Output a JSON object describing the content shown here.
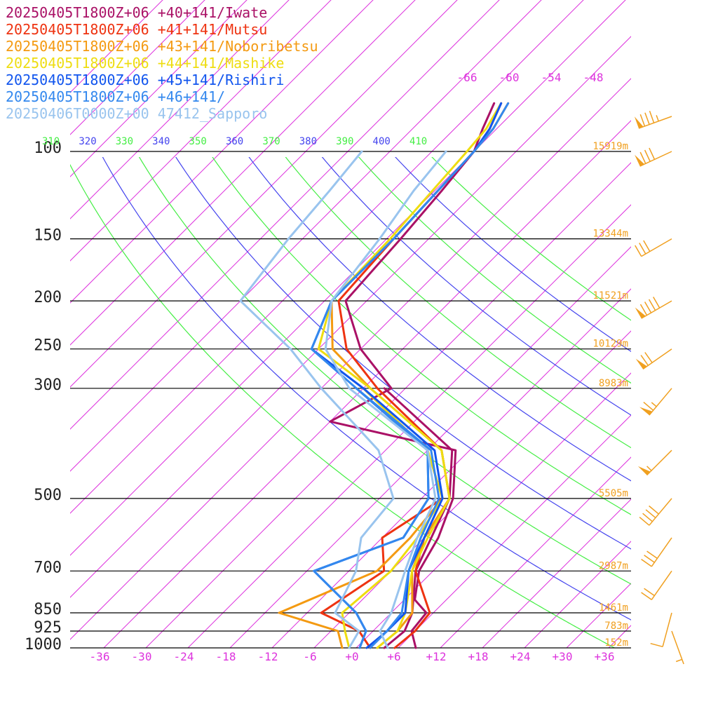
{
  "legend": [
    {
      "label": "20250405T1800Z+06 +40+141/Iwate",
      "color": "#aa1166"
    },
    {
      "label": "20250405T1800Z+06 +41+141/Mutsu",
      "color": "#ee3311"
    },
    {
      "label": "20250405T1800Z+06 +43+141/Noboribetsu",
      "color": "#f49a11"
    },
    {
      "label": "20250405T1800Z+06 +44+141/Mashike",
      "color": "#eedd11"
    },
    {
      "label": "20250405T1800Z+06 +45+141/Rishiri",
      "color": "#1155ee"
    },
    {
      "label": "20250405T1800Z+06 +46+141/",
      "color": "#3388ee"
    },
    {
      "label": "20250406T0000Z+00 47412_Sapporo",
      "color": "#99c4ee"
    }
  ],
  "chart_data": {
    "type": "line",
    "pressure_levels": [
      1000,
      925,
      850,
      700,
      500,
      300,
      250,
      200,
      150,
      100
    ],
    "pressure_tick_labels": [
      "1000",
      "925",
      "850",
      "700",
      "500",
      "300",
      "250",
      "200",
      "150",
      "100"
    ],
    "height_labels": [
      "152m",
      "783m",
      "1461m",
      "2987m",
      "5505m",
      "8983m",
      "10129m",
      "11521m",
      "13344m",
      "15919m"
    ],
    "temperature_ticks": [
      -36,
      -30,
      -24,
      -18,
      -12,
      -6,
      0,
      6,
      12,
      18,
      24,
      30,
      36
    ],
    "temperature_tick_labels": [
      "-36",
      "-30",
      "-24",
      "-18",
      "-12",
      "-6",
      "+0",
      "+6",
      "+12",
      "+18",
      "+24",
      "+30",
      "+36"
    ],
    "upper_isotherm_labels": [
      "-66",
      "-60",
      "-54",
      "-48"
    ],
    "theta_labels": [
      {
        "text": "310",
        "color": "#44ee44"
      },
      {
        "text": "320",
        "color": "#4444ee"
      },
      {
        "text": "330",
        "color": "#44ee44"
      },
      {
        "text": "340",
        "color": "#4444ee"
      },
      {
        "text": "350",
        "color": "#44ee44"
      },
      {
        "text": "360",
        "color": "#4444ee"
      },
      {
        "text": "370",
        "color": "#44ee44"
      },
      {
        "text": "380",
        "color": "#4444ee"
      },
      {
        "text": "390",
        "color": "#44ee44"
      },
      {
        "text": "400",
        "color": "#4444ee"
      },
      {
        "text": "410",
        "color": "#44ee44"
      }
    ],
    "series": [
      {
        "name": "20250405T1800Z+06 +40+141/Iwate",
        "color": "#aa1166",
        "temperature": [
          [
            1000,
            8.5
          ],
          [
            925,
            5.5
          ],
          [
            850,
            5.0
          ],
          [
            800,
            1.5
          ],
          [
            700,
            -2.0
          ],
          [
            600,
            -4.0
          ],
          [
            500,
            -7.5
          ],
          [
            400,
            -14.0
          ],
          [
            350,
            -36.0
          ],
          [
            300,
            -32.0
          ],
          [
            250,
            -42.0
          ],
          [
            200,
            -51.0
          ],
          [
            150,
            -52.0
          ],
          [
            120,
            -53.0
          ],
          [
            100,
            -54.0
          ],
          [
            90,
            -56.0
          ],
          [
            80,
            -58.0
          ]
        ],
        "dewpoint": [
          [
            1000,
            4.0
          ],
          [
            925,
            4.5
          ],
          [
            850,
            3.0
          ],
          [
            700,
            -2.5
          ],
          [
            600,
            -5.0
          ],
          [
            500,
            -8.0
          ],
          [
            400,
            -14.5
          ],
          [
            300,
            -33.0
          ]
        ]
      },
      {
        "name": "20250405T1800Z+06 +41+141/Mutsu",
        "color": "#ee3311",
        "temperature": [
          [
            1000,
            5.5
          ],
          [
            925,
            6.0
          ],
          [
            850,
            5.5
          ],
          [
            700,
            -2.5
          ],
          [
            600,
            -6.0
          ],
          [
            500,
            -8.0
          ],
          [
            400,
            -16.0
          ],
          [
            300,
            -34.0
          ],
          [
            250,
            -44.0
          ],
          [
            200,
            -52.0
          ],
          [
            150,
            -53.0
          ],
          [
            100,
            -54.0
          ],
          [
            90,
            -55.0
          ],
          [
            80,
            -57.0
          ]
        ],
        "dewpoint": [
          [
            1000,
            2.0
          ],
          [
            925,
            -2.0
          ],
          [
            850,
            -10.0
          ],
          [
            700,
            -7.0
          ],
          [
            600,
            -12.0
          ],
          [
            500,
            -9.0
          ],
          [
            400,
            -18.0
          ],
          [
            300,
            -36.0
          ]
        ]
      },
      {
        "name": "20250405T1800Z+06 +43+141/Noboribetsu",
        "color": "#f49a11",
        "temperature": [
          [
            1000,
            3.0
          ],
          [
            925,
            3.5
          ],
          [
            850,
            3.0
          ],
          [
            700,
            -3.0
          ],
          [
            600,
            -6.0
          ],
          [
            500,
            -8.0
          ],
          [
            400,
            -16.0
          ],
          [
            300,
            -35.0
          ],
          [
            250,
            -46.0
          ],
          [
            200,
            -53.0
          ],
          [
            150,
            -53.0
          ],
          [
            100,
            -54.0
          ],
          [
            90,
            -54.5
          ],
          [
            80,
            -56.0
          ]
        ],
        "dewpoint": [
          [
            1000,
            -2.0
          ],
          [
            925,
            -5.0
          ],
          [
            850,
            -16.0
          ],
          [
            700,
            -8.0
          ],
          [
            600,
            -8.0
          ],
          [
            500,
            -9.0
          ],
          [
            400,
            -18.0
          ],
          [
            300,
            -36.0
          ]
        ]
      },
      {
        "name": "20250405T1800Z+06 +44+141/Mashike",
        "color": "#eedd11",
        "temperature": [
          [
            1000,
            3.0
          ],
          [
            925,
            3.5
          ],
          [
            850,
            2.0
          ],
          [
            700,
            -3.0
          ],
          [
            600,
            -5.5
          ],
          [
            500,
            -8.0
          ],
          [
            400,
            -16.0
          ],
          [
            300,
            -35.0
          ],
          [
            250,
            -48.0
          ],
          [
            200,
            -53.0
          ],
          [
            150,
            -53.5
          ],
          [
            100,
            -55.0
          ],
          [
            90,
            -55.5
          ],
          [
            80,
            -57.0
          ]
        ],
        "dewpoint": [
          [
            1000,
            -1.0
          ],
          [
            925,
            -4.0
          ],
          [
            850,
            -7.0
          ],
          [
            700,
            -6.0
          ],
          [
            600,
            -7.0
          ],
          [
            500,
            -9.0
          ],
          [
            400,
            -18.0
          ],
          [
            300,
            -36.0
          ]
        ]
      },
      {
        "name": "20250405T1800Z+06 +45+141/Rishiri",
        "color": "#1155ee",
        "temperature": [
          [
            1000,
            1.5
          ],
          [
            925,
            2.0
          ],
          [
            850,
            2.0
          ],
          [
            700,
            -3.5
          ],
          [
            600,
            -6.0
          ],
          [
            500,
            -9.0
          ],
          [
            400,
            -17.0
          ],
          [
            300,
            -36.0
          ],
          [
            250,
            -49.0
          ],
          [
            200,
            -53.0
          ],
          [
            150,
            -53.0
          ],
          [
            100,
            -54.0
          ],
          [
            90,
            -55.0
          ],
          [
            80,
            -57.0
          ]
        ],
        "dewpoint": [
          [
            1000,
            0.5
          ],
          [
            925,
            -1.0
          ],
          [
            850,
            -5.0
          ],
          [
            700,
            -17.0
          ],
          [
            600,
            -9.0
          ],
          [
            500,
            -11.0
          ],
          [
            400,
            -18.0
          ],
          [
            300,
            -37.0
          ]
        ]
      },
      {
        "name": "20250405T1800Z+06 +46+141/",
        "color": "#3388ee",
        "temperature": [
          [
            1000,
            2.0
          ],
          [
            925,
            2.0
          ],
          [
            850,
            1.5
          ],
          [
            700,
            -3.5
          ],
          [
            600,
            -6.5
          ],
          [
            500,
            -9.5
          ],
          [
            400,
            -17.5
          ],
          [
            300,
            -37.0
          ],
          [
            250,
            -49.0
          ],
          [
            200,
            -53.0
          ],
          [
            150,
            -53.0
          ],
          [
            100,
            -54.0
          ],
          [
            90,
            -54.5
          ],
          [
            80,
            -56.0
          ]
        ],
        "dewpoint": [
          [
            1000,
            0.5
          ],
          [
            925,
            -1.0
          ],
          [
            850,
            -5.0
          ],
          [
            700,
            -17.0
          ],
          [
            600,
            -9.0
          ],
          [
            500,
            -11.0
          ],
          [
            400,
            -18.0
          ],
          [
            300,
            -37.0
          ]
        ]
      },
      {
        "name": "20250406T0000Z+00 47412_Sapporo",
        "color": "#99c4ee",
        "temperature": [
          [
            1000,
            4.5
          ],
          [
            925,
            1.0
          ],
          [
            850,
            0.0
          ],
          [
            700,
            -4.0
          ],
          [
            600,
            -7.0
          ],
          [
            500,
            -10.0
          ],
          [
            400,
            -18.0
          ],
          [
            300,
            -38.0
          ],
          [
            250,
            -47.0
          ],
          [
            200,
            -53.0
          ],
          [
            150,
            -55.0
          ],
          [
            120,
            -57.0
          ],
          [
            100,
            -58.0
          ]
        ],
        "dewpoint": [
          [
            1000,
            -1.0
          ],
          [
            925,
            -2.0
          ],
          [
            850,
            -8.0
          ],
          [
            700,
            -11.0
          ],
          [
            600,
            -15.0
          ],
          [
            500,
            -16.0
          ],
          [
            400,
            -25.0
          ],
          [
            300,
            -42.0
          ],
          [
            250,
            -52.0
          ],
          [
            200,
            -66.0
          ],
          [
            150,
            -68.0
          ],
          [
            120,
            -69.0
          ],
          [
            100,
            -70.0
          ]
        ]
      }
    ],
    "wind_barbs": [
      {
        "p": 85,
        "dir": 250,
        "speed": 85
      },
      {
        "p": 100,
        "dir": 245,
        "speed": 80
      },
      {
        "p": 150,
        "dir": 240,
        "speed": 30
      },
      {
        "p": 200,
        "dir": 240,
        "speed": 90
      },
      {
        "p": 250,
        "dir": 235,
        "speed": 70
      },
      {
        "p": 300,
        "dir": 220,
        "speed": 65
      },
      {
        "p": 400,
        "dir": 225,
        "speed": 55
      },
      {
        "p": 500,
        "dir": 220,
        "speed": 40
      },
      {
        "p": 600,
        "dir": 215,
        "speed": 30
      },
      {
        "p": 700,
        "dir": 215,
        "speed": 20
      },
      {
        "p": 850,
        "dir": 195,
        "speed": 10
      },
      {
        "p": 925,
        "dir": 160,
        "speed": 5
      }
    ],
    "xlim": [
      -38,
      38
    ],
    "ylim": [
      1000,
      100
    ],
    "grid": true,
    "legend_position": "top-left",
    "colors": {
      "isobar": "#000000",
      "isotherm": "#dd33dd",
      "dry_adiabat_green": "#44ee44",
      "dry_adiabat_blue": "#4444ee",
      "height_label": "#f0a020",
      "wind_barb": "#f0a020"
    }
  }
}
